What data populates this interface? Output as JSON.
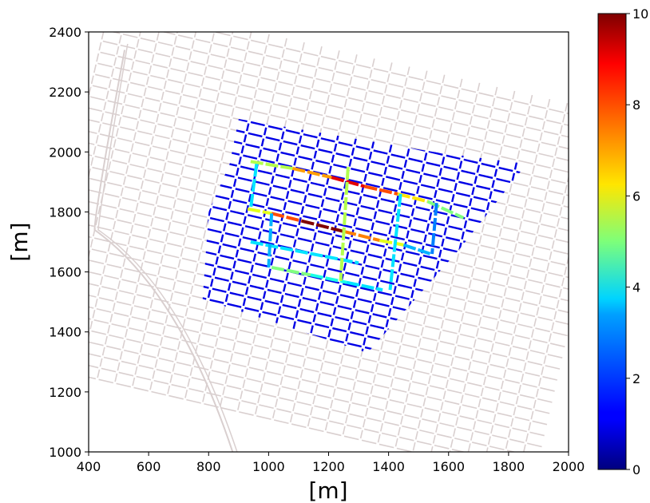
{
  "chart_data": {
    "type": "heatmap",
    "title": "",
    "xlabel": "[m]",
    "ylabel": "[m]",
    "xlim": [
      400,
      2000
    ],
    "ylim": [
      1000,
      2400
    ],
    "xticks": [
      400,
      600,
      800,
      1000,
      1200,
      1400,
      1600,
      1800,
      2000
    ],
    "yticks": [
      1000,
      1200,
      1400,
      1600,
      1800,
      2000,
      2200,
      2400
    ],
    "grid": false,
    "colorbar": {
      "colormap": "jet",
      "range": [
        0,
        10
      ],
      "ticks": [
        0,
        2,
        4,
        6,
        8,
        10
      ]
    },
    "background_network_color": "#d9cfcf",
    "highlighted_corridors": [
      {
        "from": [
          940,
          1968
        ],
        "to": [
          1080,
          1945
        ],
        "value": 5.5
      },
      {
        "from": [
          1080,
          1945
        ],
        "to": [
          1210,
          1915
        ],
        "value": 7.2
      },
      {
        "from": [
          1210,
          1915
        ],
        "to": [
          1320,
          1885
        ],
        "value": 9.0
      },
      {
        "from": [
          1320,
          1885
        ],
        "to": [
          1430,
          1860
        ],
        "value": 8.0
      },
      {
        "from": [
          1430,
          1860
        ],
        "to": [
          1530,
          1835
        ],
        "value": 6.5
      },
      {
        "from": [
          1530,
          1835
        ],
        "to": [
          1650,
          1780
        ],
        "value": 5.0
      },
      {
        "from": [
          930,
          1810
        ],
        "to": [
          1010,
          1795
        ],
        "value": 6.0
      },
      {
        "from": [
          1010,
          1795
        ],
        "to": [
          1110,
          1770
        ],
        "value": 8.0
      },
      {
        "from": [
          1110,
          1770
        ],
        "to": [
          1250,
          1735
        ],
        "value": 10.0
      },
      {
        "from": [
          1250,
          1735
        ],
        "to": [
          1370,
          1705
        ],
        "value": 7.5
      },
      {
        "from": [
          1370,
          1705
        ],
        "to": [
          1450,
          1690
        ],
        "value": 6.0
      },
      {
        "from": [
          1450,
          1690
        ],
        "to": [
          1540,
          1660
        ],
        "value": 3.0
      },
      {
        "from": [
          940,
          1700
        ],
        "to": [
          1300,
          1630
        ],
        "value": 3.5
      },
      {
        "from": [
          1010,
          1615
        ],
        "to": [
          1140,
          1590
        ],
        "value": 5.0
      },
      {
        "from": [
          1140,
          1590
        ],
        "to": [
          1260,
          1565
        ],
        "value": 4.0
      },
      {
        "from": [
          1260,
          1565
        ],
        "to": [
          1380,
          1540
        ],
        "value": 3.5
      },
      {
        "from": [
          1265,
          1950
        ],
        "to": [
          1240,
          1570
        ],
        "value": 5.5
      },
      {
        "from": [
          960,
          1960
        ],
        "to": [
          940,
          1810
        ],
        "value": 3.5
      },
      {
        "from": [
          1010,
          1795
        ],
        "to": [
          1000,
          1615
        ],
        "value": 3.0
      },
      {
        "from": [
          1440,
          1860
        ],
        "to": [
          1405,
          1540
        ],
        "value": 3.5
      },
      {
        "from": [
          1560,
          1830
        ],
        "to": [
          1545,
          1660
        ],
        "value": 2.5
      }
    ],
    "region_background_value": 1.0,
    "region_outline": [
      [
        900,
        2110
      ],
      [
        1550,
        2000
      ],
      [
        1860,
        1960
      ],
      [
        1640,
        1680
      ],
      [
        1330,
        1330
      ],
      [
        780,
        1510
      ],
      [
        800,
        1800
      ],
      [
        870,
        1960
      ]
    ]
  }
}
